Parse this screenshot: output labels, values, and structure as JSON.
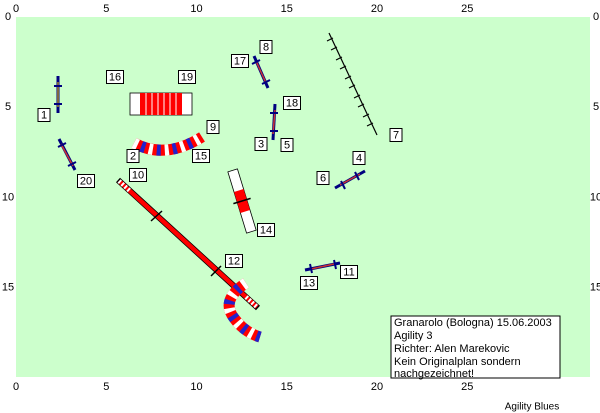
{
  "x_ticks": [
    0,
    5,
    10,
    15,
    20,
    25
  ],
  "y_ticks": [
    0,
    5,
    10,
    15
  ],
  "obstacle_labels": [
    "1",
    "2",
    "3",
    "4",
    "5",
    "6",
    "7",
    "8",
    "9",
    "10",
    "11",
    "12",
    "13",
    "14",
    "15",
    "16",
    "17",
    "18",
    "19",
    "20"
  ],
  "info_box": [
    "Granarolo (Bologna) 15.06.2003",
    "Agility 3",
    "Richter: Alen Marekovic",
    "Kein Originalplan sondern",
    "nachgezeichnet!"
  ],
  "footer": "Agility Blues"
}
